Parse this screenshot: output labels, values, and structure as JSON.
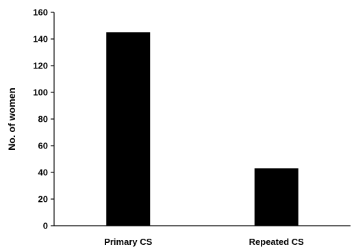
{
  "chart_data": {
    "type": "bar",
    "title": "",
    "xlabel": "",
    "ylabel": "No. of women",
    "categories": [
      "Primary CS",
      "Repeated CS"
    ],
    "values": [
      145,
      43
    ],
    "ylim": [
      0,
      160
    ],
    "yticks": [
      0,
      20,
      40,
      60,
      80,
      100,
      120,
      140,
      160
    ],
    "grid": false,
    "bar_color": "#000000"
  }
}
